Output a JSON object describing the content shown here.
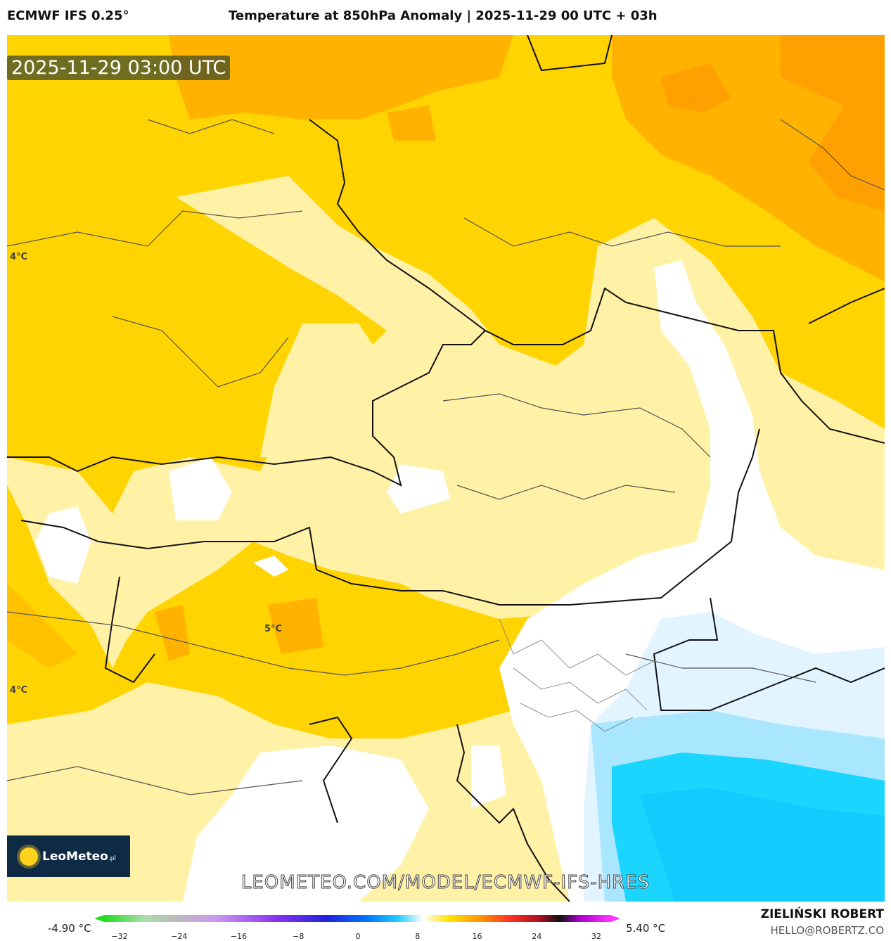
{
  "header": {
    "model": "ECMWF IFS 0.25°",
    "title": "Temperature at 850hPa Anomaly | 2025-11-29 00 UTC + 03h"
  },
  "map": {
    "timestamp": "2025-11-29 03:00 UTC",
    "contour_labels": [
      "4°C",
      "4°C",
      "5°C"
    ],
    "logo": {
      "name": "LeoMeteo",
      "suffix": ".pl"
    },
    "watermark": "LEOMETEO.COM/MODEL/ECMWF-IFS-HRES"
  },
  "legend": {
    "min_label": "-4.90 °C",
    "max_label": "5.40 °C",
    "ticks": [
      "−32",
      "−24",
      "−16",
      "−8",
      "0",
      "8",
      "16",
      "24",
      "32"
    ]
  },
  "footer": {
    "author": "ZIELIŃSKI ROBERT",
    "contact": "HELLO@ROBERTZ.CO"
  }
}
